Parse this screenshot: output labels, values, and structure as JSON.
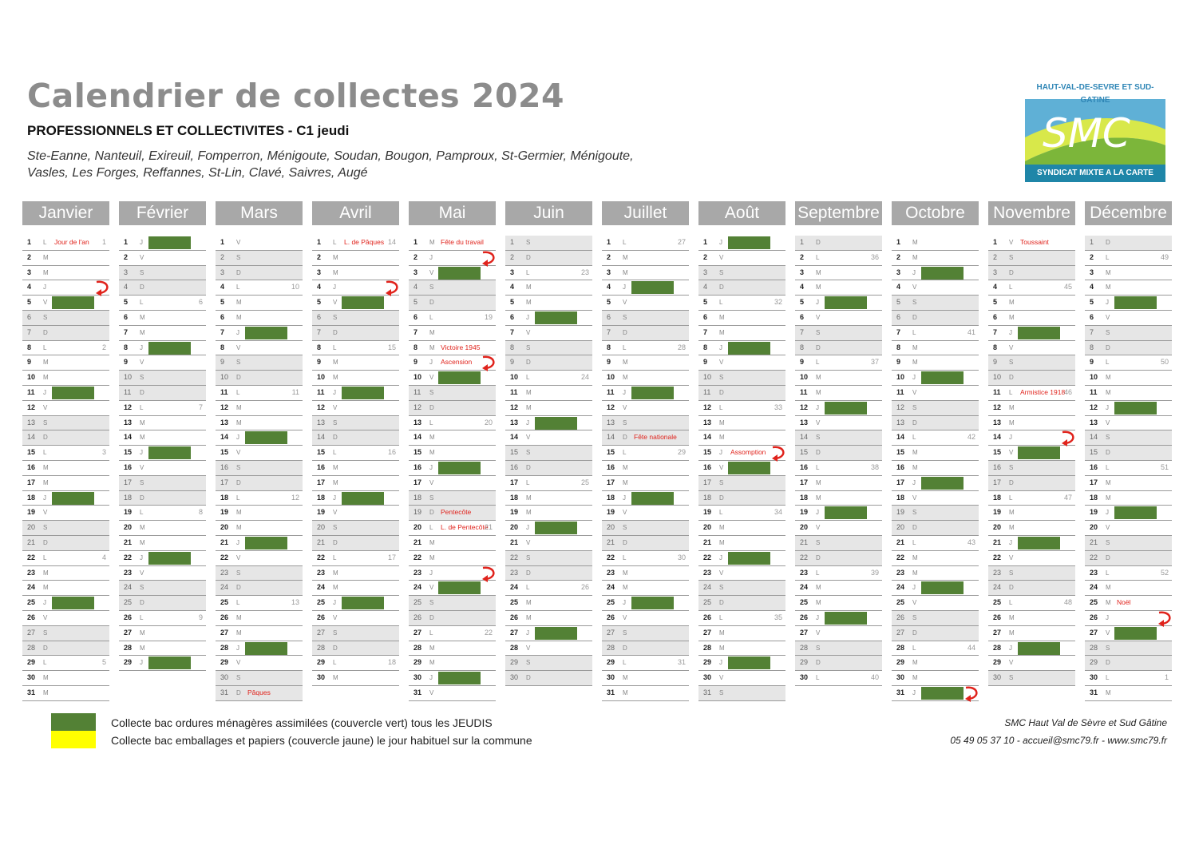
{
  "header": {
    "title": "Calendrier de collectes 2024",
    "subtitle": "PROFESSIONNELS ET COLLECTIVITES - C1 jeudi",
    "communes_line1": "Ste-Eanne, Nanteuil, Exireuil, Fomperron, Ménigoute, Soudan, Bougon, Pamproux, St-Germier, Ménigoute,",
    "communes_line2": "Vasles, Les Forges, Reffannes, St-Lin, Clavé, Saivres,  Augé"
  },
  "logo": {
    "top_text": "HAUT-VAL-DE-SEVRE ET SUD-GATINE",
    "name": "SMC",
    "bottom_text": "SYNDICAT MIXTE A LA CARTE"
  },
  "colors": {
    "green": "#538135",
    "yellow": "#ffff00",
    "header_gray": "#a8a8a8",
    "holiday_red": "#e0231c"
  },
  "months": [
    {
      "name": "Janvier",
      "start": 1,
      "days": 31,
      "green": [
        5,
        11,
        18,
        25
      ],
      "arrows": [
        4
      ],
      "holidays": {
        "1": "Jour de l'an"
      }
    },
    {
      "name": "Février",
      "start": 4,
      "days": 29,
      "green": [
        1,
        8,
        15,
        22,
        29
      ],
      "arrows": [],
      "holidays": {}
    },
    {
      "name": "Mars",
      "start": 5,
      "days": 31,
      "green": [
        7,
        14,
        21,
        28
      ],
      "arrows": [],
      "holidays": {
        "31": "Pâques"
      }
    },
    {
      "name": "Avril",
      "start": 1,
      "days": 30,
      "green": [
        5,
        11,
        18,
        25
      ],
      "arrows": [
        4
      ],
      "holidays": {
        "1": "L. de Pâques"
      }
    },
    {
      "name": "Mai",
      "start": 3,
      "days": 31,
      "green": [
        3,
        10,
        16,
        24,
        30
      ],
      "arrows": [
        2,
        9,
        23
      ],
      "holidays": {
        "1": "Fête du travail",
        "8": "Victoire 1945",
        "9": "Ascension",
        "19": "Pentecôte",
        "20": "L. de Pentecôte"
      }
    },
    {
      "name": "Juin",
      "start": 6,
      "days": 30,
      "green": [
        6,
        13,
        20,
        27
      ],
      "arrows": [],
      "holidays": {}
    },
    {
      "name": "Juillet",
      "start": 1,
      "days": 31,
      "green": [
        4,
        11,
        18,
        25
      ],
      "arrows": [],
      "holidays": {
        "14": "Fête nationale"
      }
    },
    {
      "name": "Août",
      "start": 4,
      "days": 31,
      "green": [
        1,
        8,
        16,
        22,
        29
      ],
      "arrows": [
        15
      ],
      "holidays": {
        "15": "Assomption"
      }
    },
    {
      "name": "Septembre",
      "start": 0,
      "days": 30,
      "green": [
        5,
        12,
        19,
        26
      ],
      "arrows": [],
      "holidays": {}
    },
    {
      "name": "Octobre",
      "start": 2,
      "days": 31,
      "green": [
        3,
        10,
        17,
        24,
        31
      ],
      "arrows": [
        31
      ],
      "holidays": {}
    },
    {
      "name": "Novembre",
      "start": 5,
      "days": 30,
      "green": [
        7,
        15,
        21,
        28
      ],
      "arrows": [
        14
      ],
      "holidays": {
        "1": "Toussaint",
        "11": "Armistice 1918"
      }
    },
    {
      "name": "Décembre",
      "start": 0,
      "days": 31,
      "green": [
        5,
        12,
        19,
        27
      ],
      "arrows": [
        26
      ],
      "holidays": {
        "25": "Noël"
      }
    }
  ],
  "day_letters": [
    "D",
    "L",
    "M",
    "M",
    "J",
    "V",
    "S"
  ],
  "legend": {
    "green_label": "Collecte bac ordures ménagères assimilées (couvercle vert) tous les JEUDIS",
    "yellow_label": "Collecte bac emballages et papiers (couvercle jaune) le jour habituel sur la commune"
  },
  "footer": {
    "org": "SMC Haut Val de Sèvre et Sud Gâtine",
    "contact": "05 49 05 37 10 - accueil@smc79.fr - www.smc79.fr"
  }
}
